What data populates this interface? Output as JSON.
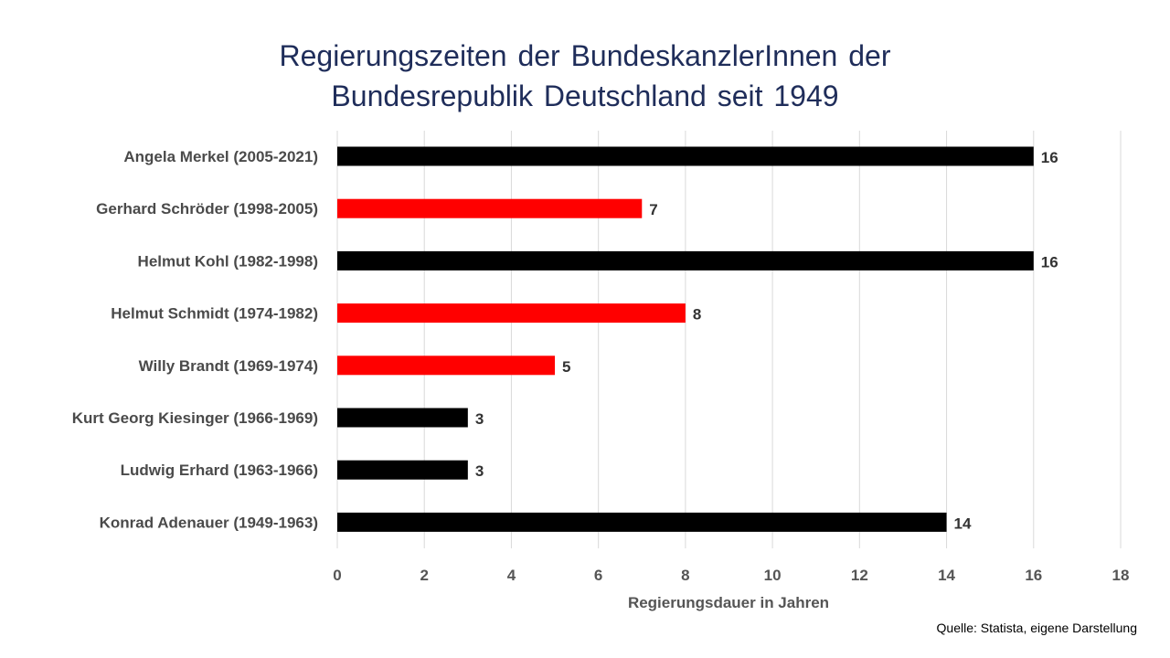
{
  "title_lines": [
    "Regierungszeiten der BundeskanzlerInnen der",
    "Bundesrepublik Deutschland seit 1949"
  ],
  "source": "Quelle: Statista, eigene Darstellung",
  "chart_data": {
    "type": "bar",
    "orientation": "horizontal",
    "title": "Regierungszeiten der BundeskanzlerInnen der Bundesrepublik Deutschland seit 1949",
    "xlabel": "Regierungsdauer in Jahren",
    "ylabel": "",
    "xlim": [
      0,
      18
    ],
    "xticks": [
      0,
      2,
      4,
      6,
      8,
      10,
      12,
      14,
      16,
      18
    ],
    "grid": "vertical",
    "legend": "none",
    "data_labels": true,
    "categories": [
      "Angela Merkel (2005-2021)",
      "Gerhard Schröder (1998-2005)",
      "Helmut Kohl (1982-1998)",
      "Helmut Schmidt (1974-1982)",
      "Willy Brandt (1969-1974)",
      "Kurt Georg Kiesinger (1966-1969)",
      "Ludwig Erhard (1963-1966)",
      "Konrad Adenauer (1949-1963)"
    ],
    "values": [
      16,
      7,
      16,
      8,
      5,
      3,
      3,
      14
    ],
    "colors": [
      "#000000",
      "#ff0000",
      "#000000",
      "#ff0000",
      "#ff0000",
      "#000000",
      "#000000",
      "#000000"
    ]
  }
}
